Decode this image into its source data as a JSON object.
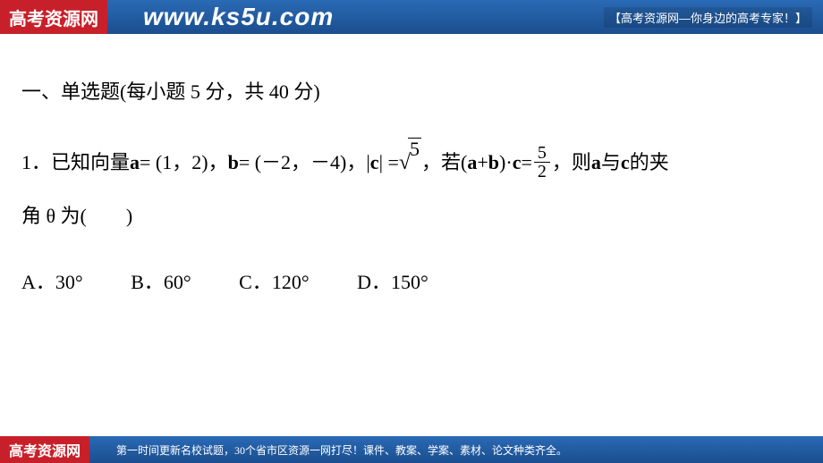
{
  "banner": {
    "logo_text": "高考资源网",
    "url": "www.ks5u.com",
    "tagline": "【高考资源网—你身边的高考专家！】",
    "bg_start": "#2a6ab5",
    "bg_end": "#1b4e8f",
    "logo_bg": "#c8202a"
  },
  "content": {
    "section_title": "一、单选题(每小题 5 分，共 40 分)",
    "q1": {
      "prefix": "1．已知向量 ",
      "a_label": "a",
      "a_eq": " = (1，2)，",
      "b_label": "b",
      "b_eq": " = (－2，－4)，|",
      "c_label": "c",
      "c_eq_after": "| = ",
      "sqrt_val": "5",
      "mid": " ，若(",
      "ab_a": "a",
      "plus": " + ",
      "ab_b": "b",
      "dot": ")·",
      "ab_c": "c",
      "eq2": " = ",
      "frac_num": "5",
      "frac_den": "2",
      "tail": " ，则 ",
      "tail_a": "a",
      "tail_mid": " 与 ",
      "tail_c": "c",
      "tail_end": " 的夹",
      "line2": "角 θ 为(　　)"
    },
    "options": {
      "A": "A．30°",
      "B": "B．60°",
      "C": "C．120°",
      "D": "D．150°"
    }
  },
  "footer": {
    "logo_text": "高考资源网",
    "text": "第一时间更新名校试题，30个省市区资源一网打尽！课件、教案、学案、素材、论文种类齐全。"
  },
  "style": {
    "body_font_size": 22,
    "text_color": "#000000",
    "page_bg": "#ffffff"
  }
}
